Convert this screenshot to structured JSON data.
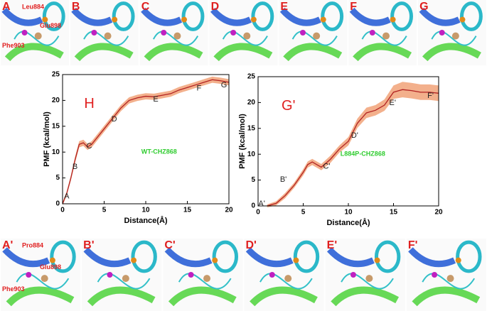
{
  "top_panels": {
    "labels": [
      "A",
      "B",
      "C",
      "D",
      "E",
      "F",
      "G"
    ],
    "residues": [
      "Leu884",
      "Glu898",
      "Phe903"
    ]
  },
  "chart_data": [
    {
      "type": "line",
      "title": "H",
      "note": "WT-CHZ868",
      "xlabel": "Distance(Å)",
      "ylabel": "PMF (kcal/mol)",
      "xlim": [
        0,
        20
      ],
      "ylim": [
        0,
        25
      ],
      "xticks": [
        0,
        5,
        10,
        15,
        20
      ],
      "yticks": [
        0,
        5,
        10,
        15,
        20,
        25
      ],
      "series": [
        {
          "color": "#b22222",
          "band_color": "#f3b08c",
          "x": [
            0,
            0.5,
            1,
            1.5,
            2,
            2.5,
            3,
            3.5,
            4,
            5,
            6,
            7,
            8,
            9,
            10,
            11,
            12,
            13,
            14,
            15,
            16,
            17,
            18,
            19,
            20
          ],
          "values": [
            0,
            2,
            5,
            8.5,
            11.5,
            11.8,
            11,
            11.5,
            12.5,
            14.5,
            16.5,
            18.5,
            20,
            20.5,
            20.8,
            20.7,
            21,
            21.3,
            22,
            22.5,
            23,
            23.5,
            24,
            23.8,
            23.5
          ],
          "errors": [
            0.3,
            0.4,
            0.5,
            0.6,
            0.6,
            0.6,
            0.6,
            0.6,
            0.6,
            0.6,
            0.6,
            0.6,
            0.6,
            0.6,
            0.6,
            0.6,
            0.6,
            0.6,
            0.6,
            0.6,
            0.6,
            0.6,
            0.6,
            0.6,
            0.6
          ]
        }
      ],
      "annotations": [
        {
          "text": "A",
          "x": 0.5,
          "y": 1.4
        },
        {
          "text": "B",
          "x": 1.5,
          "y": 7.1
        },
        {
          "text": "C",
          "x": 3.2,
          "y": 11.1
        },
        {
          "text": "D",
          "x": 6.2,
          "y": 16.3
        },
        {
          "text": "E",
          "x": 11.2,
          "y": 20.2
        },
        {
          "text": "F",
          "x": 16.4,
          "y": 22.3
        },
        {
          "text": "G",
          "x": 19.4,
          "y": 22.9
        }
      ]
    },
    {
      "type": "line",
      "title": "G'",
      "note": "L884P-CHZ868",
      "xlabel": "Distance(Å)",
      "ylabel": "PMF (kcal/mol)",
      "xlim": [
        0,
        20
      ],
      "ylim": [
        0,
        25
      ],
      "xticks": [
        0,
        5,
        10,
        15,
        20
      ],
      "yticks": [
        0,
        5,
        10,
        15,
        20,
        25
      ],
      "series": [
        {
          "color": "#b22222",
          "band_color": "#f3b08c",
          "x": [
            1,
            2,
            3,
            4,
            5,
            5.5,
            6,
            6.5,
            7,
            8,
            9,
            10,
            11,
            12,
            13,
            14,
            15,
            16,
            17,
            18,
            19,
            20
          ],
          "values": [
            0,
            0.5,
            2,
            4,
            6.5,
            8,
            8.5,
            8,
            7.5,
            9,
            11,
            12.5,
            16,
            18,
            18.5,
            19.5,
            22,
            22.5,
            22.3,
            22,
            22,
            21.8
          ],
          "errors": [
            0.3,
            0.4,
            0.5,
            0.5,
            0.6,
            0.6,
            0.6,
            0.6,
            0.6,
            0.7,
            0.7,
            0.8,
            0.9,
            1,
            1,
            1.1,
            1.3,
            1.5,
            1.5,
            1.5,
            1.5,
            1.5
          ]
        }
      ],
      "annotations": [
        {
          "text": "A'",
          "x": 0.4,
          "y": 0.4
        },
        {
          "text": "B'",
          "x": 2.8,
          "y": 5.1
        },
        {
          "text": "C'",
          "x": 7.6,
          "y": 7.6
        },
        {
          "text": "D'",
          "x": 10.7,
          "y": 13.6
        },
        {
          "text": "E'",
          "x": 14.9,
          "y": 19.9
        },
        {
          "text": "F'",
          "x": 19.1,
          "y": 21.3
        }
      ]
    }
  ],
  "bottom_panels": {
    "labels": [
      "A'",
      "B'",
      "C'",
      "D'",
      "E'",
      "F'"
    ],
    "residues": [
      "Pro884",
      "Glu898",
      "Phe903"
    ]
  }
}
